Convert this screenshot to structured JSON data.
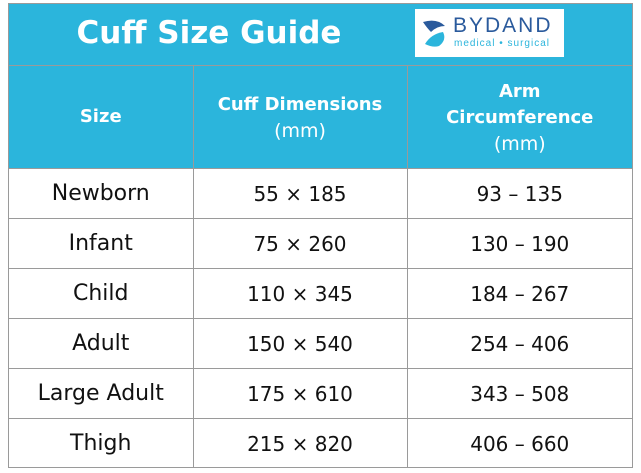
{
  "header": {
    "title": "Cuff Size Guide",
    "logo": {
      "name": "BYDAND",
      "tagline": "medical • surgical"
    }
  },
  "table": {
    "columns": [
      {
        "title": "Size"
      },
      {
        "title": "Cuff Dimensions",
        "unit": "(mm)"
      },
      {
        "title": "Arm Circumference",
        "unit": "(mm)"
      }
    ],
    "rows": [
      [
        "Newborn",
        "55 × 185",
        "93 – 135"
      ],
      [
        "Infant",
        "75 × 260",
        "130 – 190"
      ],
      [
        "Child",
        "110 × 345",
        "184 – 267"
      ],
      [
        "Adult",
        "150 × 540",
        "254 – 406"
      ],
      [
        "Large Adult",
        "175 × 610",
        "343 – 508"
      ],
      [
        "Thigh",
        "215 × 820",
        "406 – 660"
      ]
    ]
  }
}
